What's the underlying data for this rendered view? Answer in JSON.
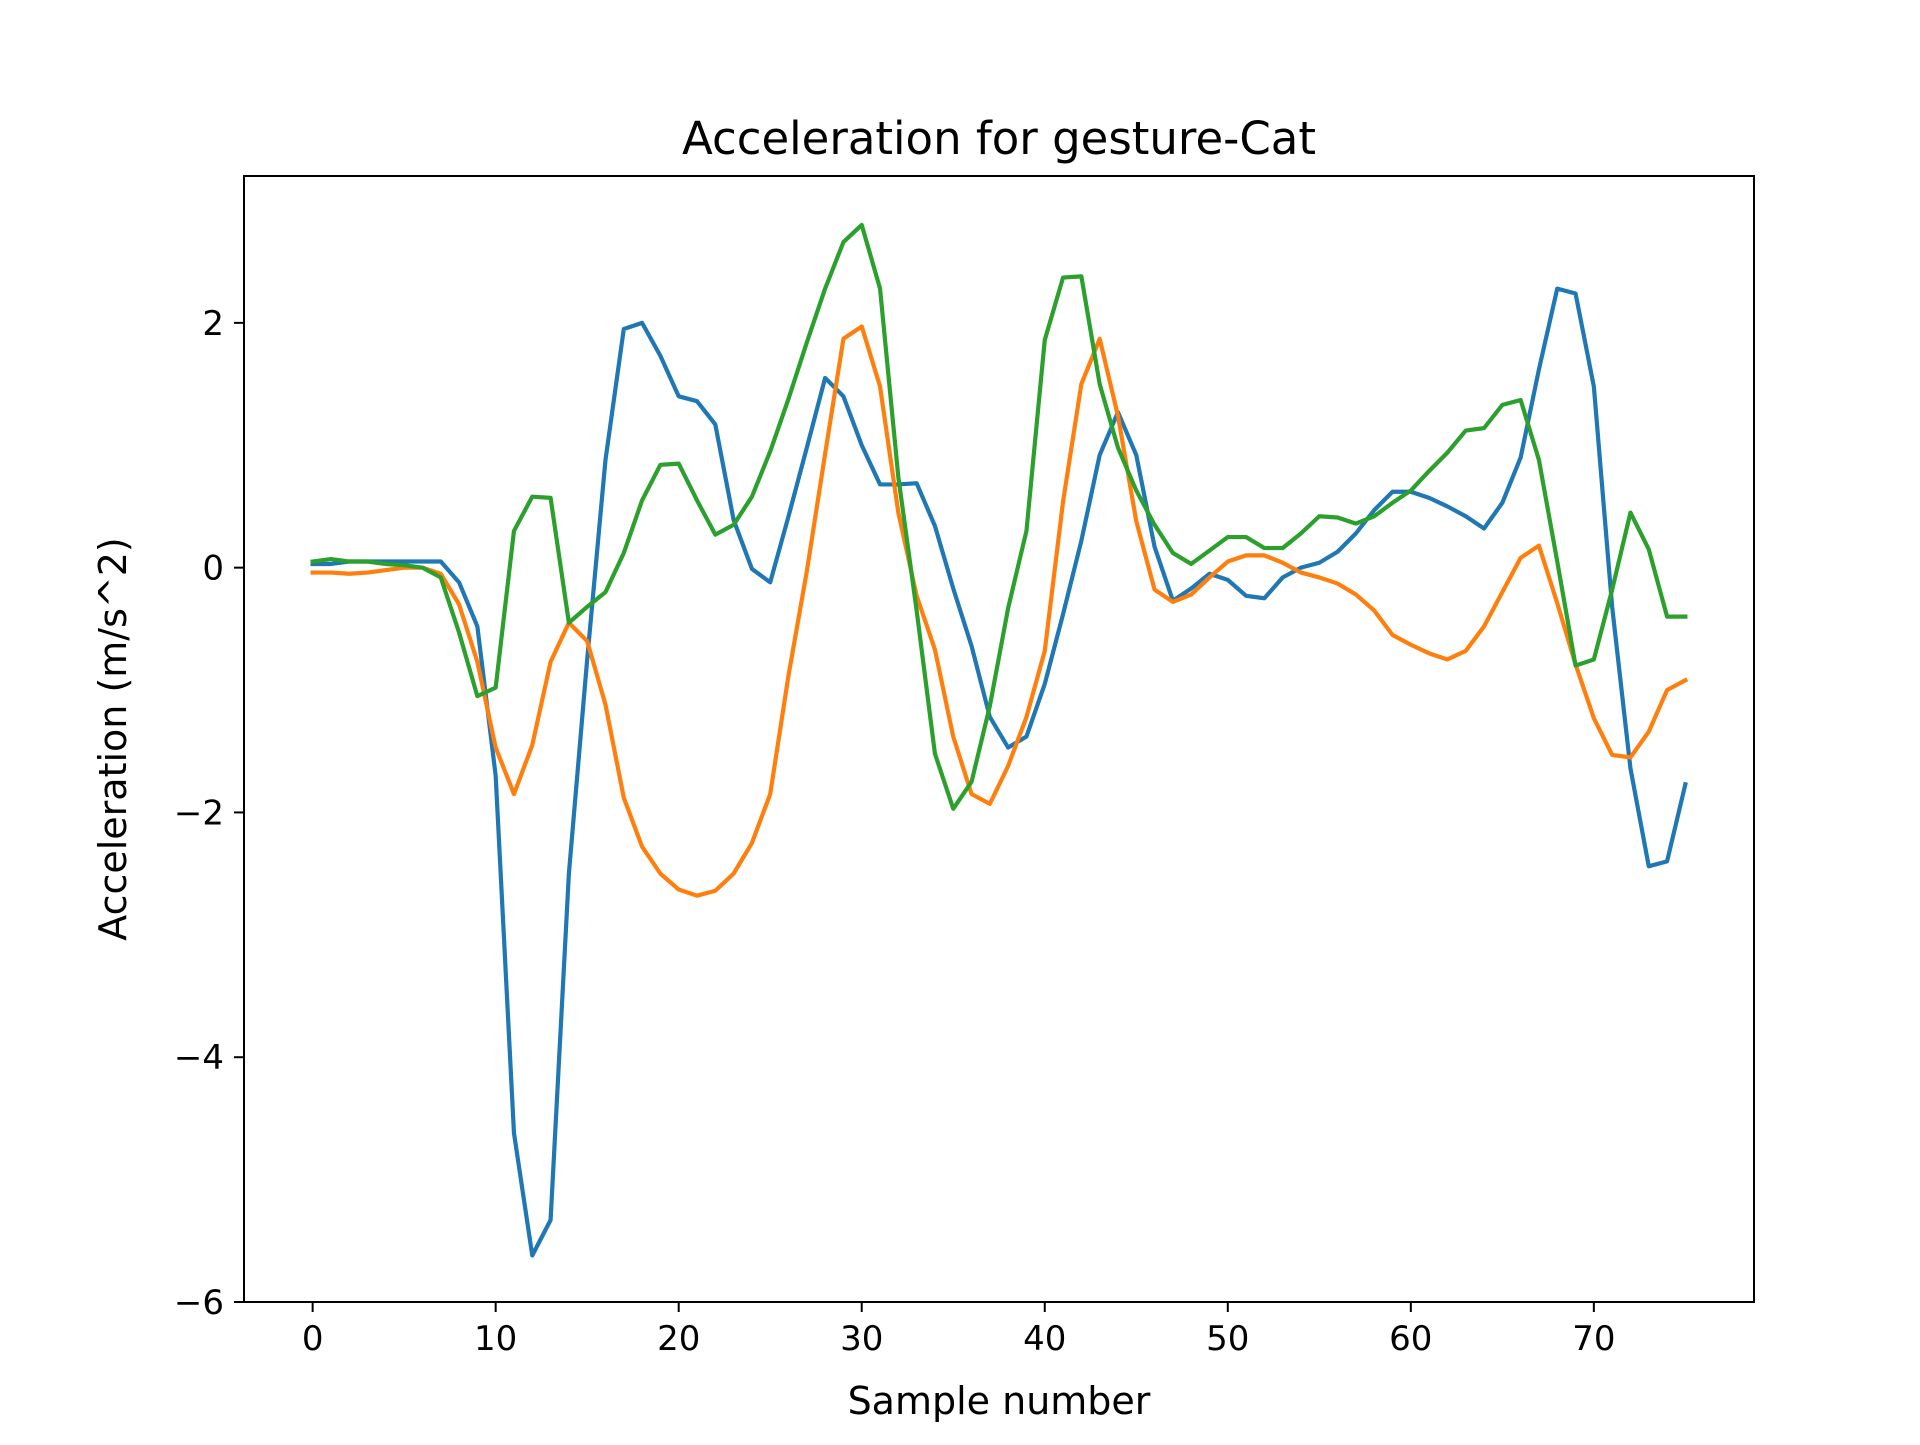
{
  "chart_data": {
    "type": "line",
    "title": "Acceleration for gesture-Cat",
    "xlabel": "Sample number",
    "ylabel": "Acceleration (m/s^2)",
    "xlim": [
      -3.75,
      78.75
    ],
    "ylim": [
      -6.0,
      3.2
    ],
    "xticks": [
      0,
      10,
      20,
      30,
      40,
      50,
      60,
      70
    ],
    "xtick_labels": [
      "0",
      "10",
      "20",
      "30",
      "40",
      "50",
      "60",
      "70"
    ],
    "yticks": [
      2,
      0,
      -2,
      -4,
      -6
    ],
    "ytick_labels": [
      "2",
      "0",
      "−2",
      "−4",
      "−6"
    ],
    "grid": false,
    "legend": false,
    "x": [
      0,
      1,
      2,
      3,
      4,
      5,
      6,
      7,
      8,
      9,
      10,
      11,
      12,
      13,
      14,
      15,
      16,
      17,
      18,
      19,
      20,
      21,
      22,
      23,
      24,
      25,
      26,
      27,
      28,
      29,
      30,
      31,
      32,
      33,
      34,
      35,
      36,
      37,
      38,
      39,
      40,
      41,
      42,
      43,
      44,
      45,
      46,
      47,
      48,
      49,
      50,
      51,
      52,
      53,
      54,
      55,
      56,
      57,
      58,
      59,
      60,
      61,
      62,
      63,
      64,
      65,
      66,
      67,
      68,
      69,
      70,
      71,
      72,
      73,
      74,
      75
    ],
    "series": [
      {
        "color": "#1f77b4",
        "values": [
          0.03,
          0.03,
          0.05,
          0.05,
          0.05,
          0.05,
          0.05,
          0.05,
          -0.12,
          -0.48,
          -1.7,
          -4.62,
          -5.62,
          -5.33,
          -2.5,
          -0.75,
          0.88,
          1.95,
          2.0,
          1.73,
          1.4,
          1.36,
          1.17,
          0.39,
          -0.01,
          -0.12,
          0.42,
          0.98,
          1.55,
          1.4,
          1.0,
          0.68,
          0.68,
          0.69,
          0.34,
          -0.17,
          -0.64,
          -1.22,
          -1.47,
          -1.38,
          -0.95,
          -0.38,
          0.22,
          0.92,
          1.27,
          0.92,
          0.17,
          -0.27,
          -0.17,
          -0.05,
          -0.1,
          -0.23,
          -0.25,
          -0.08,
          0.0,
          0.04,
          0.13,
          0.28,
          0.47,
          0.62,
          0.62,
          0.57,
          0.5,
          0.42,
          0.32,
          0.53,
          0.9,
          1.62,
          2.28,
          2.24,
          1.48,
          -0.32,
          -1.64,
          -2.44,
          -2.4,
          -1.77
        ]
      },
      {
        "color": "#ff7f0e",
        "values": [
          -0.04,
          -0.04,
          -0.05,
          -0.04,
          -0.02,
          0.0,
          0.0,
          -0.05,
          -0.3,
          -0.77,
          -1.47,
          -1.85,
          -1.45,
          -0.77,
          -0.45,
          -0.6,
          -1.12,
          -1.88,
          -2.28,
          -2.5,
          -2.63,
          -2.68,
          -2.64,
          -2.5,
          -2.25,
          -1.85,
          -0.88,
          -0.03,
          0.93,
          1.87,
          1.97,
          1.48,
          0.45,
          -0.23,
          -0.67,
          -1.38,
          -1.85,
          -1.93,
          -1.62,
          -1.22,
          -0.68,
          0.54,
          1.5,
          1.87,
          1.24,
          0.38,
          -0.18,
          -0.28,
          -0.22,
          -0.08,
          0.05,
          0.1,
          0.1,
          0.04,
          -0.04,
          -0.08,
          -0.13,
          -0.22,
          -0.35,
          -0.55,
          -0.63,
          -0.7,
          -0.75,
          -0.68,
          -0.48,
          -0.2,
          0.08,
          0.18,
          -0.29,
          -0.79,
          -1.23,
          -1.53,
          -1.55,
          -1.34,
          -1.0,
          -0.92
        ]
      },
      {
        "color": "#2ca02c",
        "values": [
          0.05,
          0.07,
          0.05,
          0.05,
          0.03,
          0.02,
          0.0,
          -0.08,
          -0.53,
          -1.05,
          -0.98,
          0.3,
          0.58,
          0.57,
          -0.45,
          -0.32,
          -0.2,
          0.12,
          0.55,
          0.84,
          0.85,
          0.55,
          0.27,
          0.35,
          0.58,
          0.95,
          1.38,
          1.84,
          2.28,
          2.66,
          2.8,
          2.28,
          0.74,
          -0.35,
          -1.52,
          -1.97,
          -1.75,
          -1.13,
          -0.33,
          0.3,
          1.86,
          2.37,
          2.38,
          1.5,
          0.98,
          0.63,
          0.35,
          0.12,
          0.03,
          0.14,
          0.25,
          0.25,
          0.16,
          0.16,
          0.28,
          0.42,
          0.41,
          0.36,
          0.42,
          0.53,
          0.63,
          0.79,
          0.94,
          1.12,
          1.14,
          1.33,
          1.37,
          0.88,
          0.05,
          -0.8,
          -0.75,
          -0.18,
          0.45,
          0.15,
          -0.4,
          -0.4
        ]
      }
    ]
  }
}
